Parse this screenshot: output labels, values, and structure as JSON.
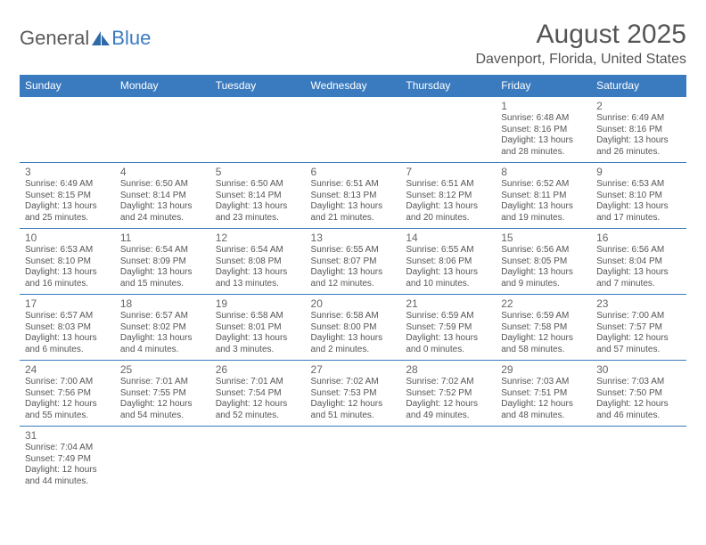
{
  "logo": {
    "text1": "General",
    "text2": "Blue"
  },
  "title": "August 2025",
  "location": "Davenport, Florida, United States",
  "colors": {
    "header_bg": "#3a7bbf",
    "header_text": "#ffffff",
    "border": "#3a7bbf",
    "body_text": "#555555"
  },
  "dayHeaders": [
    "Sunday",
    "Monday",
    "Tuesday",
    "Wednesday",
    "Thursday",
    "Friday",
    "Saturday"
  ],
  "weeks": [
    [
      null,
      null,
      null,
      null,
      null,
      {
        "n": "1",
        "sr": "Sunrise: 6:48 AM",
        "ss": "Sunset: 8:16 PM",
        "d1": "Daylight: 13 hours",
        "d2": "and 28 minutes."
      },
      {
        "n": "2",
        "sr": "Sunrise: 6:49 AM",
        "ss": "Sunset: 8:16 PM",
        "d1": "Daylight: 13 hours",
        "d2": "and 26 minutes."
      }
    ],
    [
      {
        "n": "3",
        "sr": "Sunrise: 6:49 AM",
        "ss": "Sunset: 8:15 PM",
        "d1": "Daylight: 13 hours",
        "d2": "and 25 minutes."
      },
      {
        "n": "4",
        "sr": "Sunrise: 6:50 AM",
        "ss": "Sunset: 8:14 PM",
        "d1": "Daylight: 13 hours",
        "d2": "and 24 minutes."
      },
      {
        "n": "5",
        "sr": "Sunrise: 6:50 AM",
        "ss": "Sunset: 8:14 PM",
        "d1": "Daylight: 13 hours",
        "d2": "and 23 minutes."
      },
      {
        "n": "6",
        "sr": "Sunrise: 6:51 AM",
        "ss": "Sunset: 8:13 PM",
        "d1": "Daylight: 13 hours",
        "d2": "and 21 minutes."
      },
      {
        "n": "7",
        "sr": "Sunrise: 6:51 AM",
        "ss": "Sunset: 8:12 PM",
        "d1": "Daylight: 13 hours",
        "d2": "and 20 minutes."
      },
      {
        "n": "8",
        "sr": "Sunrise: 6:52 AM",
        "ss": "Sunset: 8:11 PM",
        "d1": "Daylight: 13 hours",
        "d2": "and 19 minutes."
      },
      {
        "n": "9",
        "sr": "Sunrise: 6:53 AM",
        "ss": "Sunset: 8:10 PM",
        "d1": "Daylight: 13 hours",
        "d2": "and 17 minutes."
      }
    ],
    [
      {
        "n": "10",
        "sr": "Sunrise: 6:53 AM",
        "ss": "Sunset: 8:10 PM",
        "d1": "Daylight: 13 hours",
        "d2": "and 16 minutes."
      },
      {
        "n": "11",
        "sr": "Sunrise: 6:54 AM",
        "ss": "Sunset: 8:09 PM",
        "d1": "Daylight: 13 hours",
        "d2": "and 15 minutes."
      },
      {
        "n": "12",
        "sr": "Sunrise: 6:54 AM",
        "ss": "Sunset: 8:08 PM",
        "d1": "Daylight: 13 hours",
        "d2": "and 13 minutes."
      },
      {
        "n": "13",
        "sr": "Sunrise: 6:55 AM",
        "ss": "Sunset: 8:07 PM",
        "d1": "Daylight: 13 hours",
        "d2": "and 12 minutes."
      },
      {
        "n": "14",
        "sr": "Sunrise: 6:55 AM",
        "ss": "Sunset: 8:06 PM",
        "d1": "Daylight: 13 hours",
        "d2": "and 10 minutes."
      },
      {
        "n": "15",
        "sr": "Sunrise: 6:56 AM",
        "ss": "Sunset: 8:05 PM",
        "d1": "Daylight: 13 hours",
        "d2": "and 9 minutes."
      },
      {
        "n": "16",
        "sr": "Sunrise: 6:56 AM",
        "ss": "Sunset: 8:04 PM",
        "d1": "Daylight: 13 hours",
        "d2": "and 7 minutes."
      }
    ],
    [
      {
        "n": "17",
        "sr": "Sunrise: 6:57 AM",
        "ss": "Sunset: 8:03 PM",
        "d1": "Daylight: 13 hours",
        "d2": "and 6 minutes."
      },
      {
        "n": "18",
        "sr": "Sunrise: 6:57 AM",
        "ss": "Sunset: 8:02 PM",
        "d1": "Daylight: 13 hours",
        "d2": "and 4 minutes."
      },
      {
        "n": "19",
        "sr": "Sunrise: 6:58 AM",
        "ss": "Sunset: 8:01 PM",
        "d1": "Daylight: 13 hours",
        "d2": "and 3 minutes."
      },
      {
        "n": "20",
        "sr": "Sunrise: 6:58 AM",
        "ss": "Sunset: 8:00 PM",
        "d1": "Daylight: 13 hours",
        "d2": "and 2 minutes."
      },
      {
        "n": "21",
        "sr": "Sunrise: 6:59 AM",
        "ss": "Sunset: 7:59 PM",
        "d1": "Daylight: 13 hours",
        "d2": "and 0 minutes."
      },
      {
        "n": "22",
        "sr": "Sunrise: 6:59 AM",
        "ss": "Sunset: 7:58 PM",
        "d1": "Daylight: 12 hours",
        "d2": "and 58 minutes."
      },
      {
        "n": "23",
        "sr": "Sunrise: 7:00 AM",
        "ss": "Sunset: 7:57 PM",
        "d1": "Daylight: 12 hours",
        "d2": "and 57 minutes."
      }
    ],
    [
      {
        "n": "24",
        "sr": "Sunrise: 7:00 AM",
        "ss": "Sunset: 7:56 PM",
        "d1": "Daylight: 12 hours",
        "d2": "and 55 minutes."
      },
      {
        "n": "25",
        "sr": "Sunrise: 7:01 AM",
        "ss": "Sunset: 7:55 PM",
        "d1": "Daylight: 12 hours",
        "d2": "and 54 minutes."
      },
      {
        "n": "26",
        "sr": "Sunrise: 7:01 AM",
        "ss": "Sunset: 7:54 PM",
        "d1": "Daylight: 12 hours",
        "d2": "and 52 minutes."
      },
      {
        "n": "27",
        "sr": "Sunrise: 7:02 AM",
        "ss": "Sunset: 7:53 PM",
        "d1": "Daylight: 12 hours",
        "d2": "and 51 minutes."
      },
      {
        "n": "28",
        "sr": "Sunrise: 7:02 AM",
        "ss": "Sunset: 7:52 PM",
        "d1": "Daylight: 12 hours",
        "d2": "and 49 minutes."
      },
      {
        "n": "29",
        "sr": "Sunrise: 7:03 AM",
        "ss": "Sunset: 7:51 PM",
        "d1": "Daylight: 12 hours",
        "d2": "and 48 minutes."
      },
      {
        "n": "30",
        "sr": "Sunrise: 7:03 AM",
        "ss": "Sunset: 7:50 PM",
        "d1": "Daylight: 12 hours",
        "d2": "and 46 minutes."
      }
    ],
    [
      {
        "n": "31",
        "sr": "Sunrise: 7:04 AM",
        "ss": "Sunset: 7:49 PM",
        "d1": "Daylight: 12 hours",
        "d2": "and 44 minutes."
      },
      null,
      null,
      null,
      null,
      null,
      null
    ]
  ]
}
